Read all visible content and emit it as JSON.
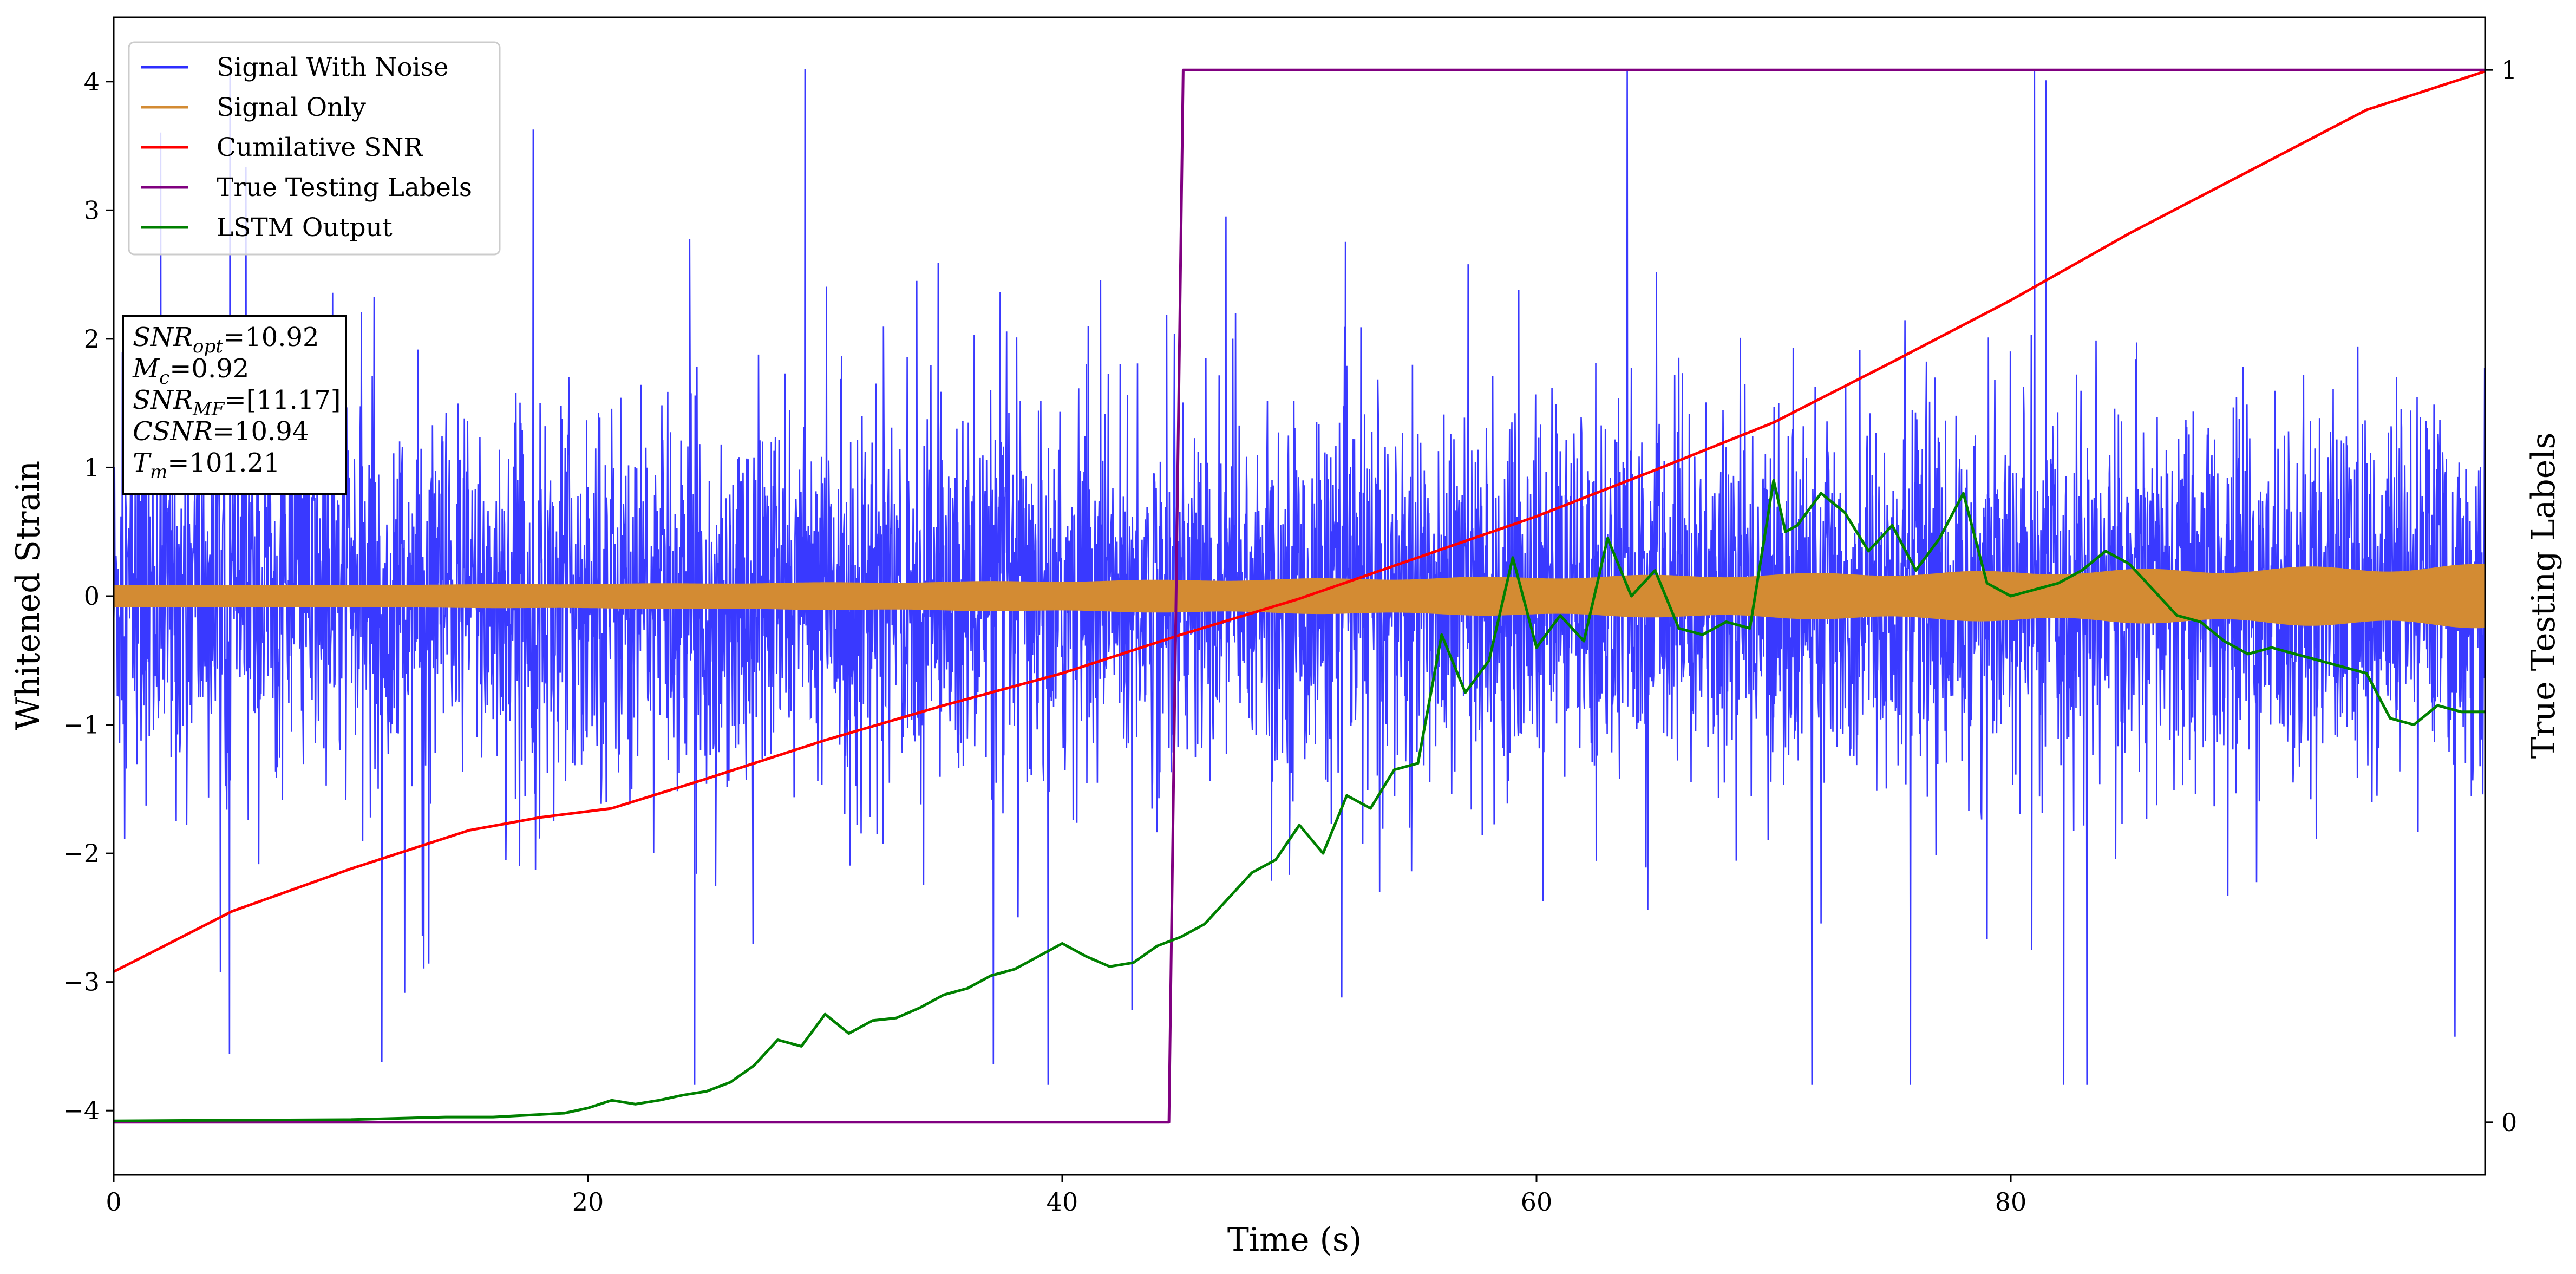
{
  "chart_data": {
    "type": "line",
    "xlabel": "Time (s)",
    "ylabel": "Whitened Strain",
    "ylabel_right": "True Testing Labels",
    "xlim": [
      0,
      100
    ],
    "ylim": [
      -4.5,
      4.5
    ],
    "ylim_right": [
      -0.05,
      1.05
    ],
    "x_ticks": [
      0,
      20,
      40,
      60,
      80
    ],
    "y_ticks": [
      -4,
      -3,
      -2,
      -1,
      0,
      1,
      2,
      3,
      4
    ],
    "y_ticks_right": [
      0,
      1
    ],
    "grid": false,
    "legend_position": "top-left",
    "legend": [
      "Signal With Noise",
      "Signal Only",
      "Cumilative SNR",
      "True Testing Labels",
      "LSTM Output"
    ],
    "series": [
      {
        "name": "Signal With Noise",
        "color": "#2e2eff",
        "kind": "noisy-band",
        "envelope_typical": 1.4,
        "peak_range": [
          -3.8,
          4.1
        ]
      },
      {
        "name": "Signal Only",
        "color": "#d38b33",
        "kind": "chirp-band",
        "amplitude_start": 0.08,
        "amplitude_end": 0.22
      },
      {
        "name": "Cumilative SNR",
        "color": "#ff0000",
        "axis": "left",
        "x": [
          0,
          5,
          10,
          15,
          18,
          21,
          25,
          30,
          35,
          40,
          45,
          50,
          55,
          60,
          65,
          70,
          75,
          80,
          85,
          90,
          95,
          100
        ],
        "values": [
          -2.92,
          -2.45,
          -2.12,
          -1.82,
          -1.72,
          -1.65,
          -1.42,
          -1.12,
          -0.85,
          -0.6,
          -0.3,
          -0.02,
          0.3,
          0.62,
          0.98,
          1.35,
          1.82,
          2.3,
          2.82,
          3.3,
          3.78,
          4.08
        ]
      },
      {
        "name": "True Testing Labels",
        "color": "#800080",
        "axis": "right",
        "x": [
          0,
          44.5,
          45.1,
          100
        ],
        "values": [
          0,
          0,
          1,
          1
        ]
      },
      {
        "name": "LSTM Output",
        "color": "#008000",
        "axis": "left",
        "x": [
          0,
          10,
          12,
          14,
          16,
          17,
          19,
          20,
          21,
          22,
          23,
          24,
          25,
          26,
          27,
          28,
          29,
          30,
          31,
          32,
          33,
          34,
          35,
          36,
          37,
          38,
          39,
          40,
          41,
          42,
          43,
          44,
          45,
          46,
          47,
          48,
          49,
          50,
          51,
          52,
          53,
          54,
          55,
          56,
          57,
          58,
          59,
          60,
          61,
          62,
          63,
          64,
          65,
          66,
          67,
          68,
          69,
          70,
          70.5,
          71,
          72,
          73,
          74,
          75,
          76,
          77,
          78,
          79,
          80,
          81,
          82,
          83,
          84,
          85,
          86,
          87,
          88,
          89,
          90,
          91,
          92,
          93,
          94,
          95,
          96,
          97,
          98,
          99,
          100
        ],
        "values": [
          -4.08,
          -4.07,
          -4.06,
          -4.05,
          -4.05,
          -4.04,
          -4.02,
          -3.98,
          -3.92,
          -3.95,
          -3.92,
          -3.88,
          -3.85,
          -3.78,
          -3.65,
          -3.45,
          -3.5,
          -3.25,
          -3.4,
          -3.3,
          -3.28,
          -3.2,
          -3.1,
          -3.05,
          -2.95,
          -2.9,
          -2.8,
          -2.7,
          -2.8,
          -2.88,
          -2.85,
          -2.72,
          -2.65,
          -2.55,
          -2.35,
          -2.15,
          -2.05,
          -1.78,
          -2.0,
          -1.55,
          -1.65,
          -1.35,
          -1.3,
          -0.3,
          -0.75,
          -0.5,
          0.3,
          -0.4,
          -0.15,
          -0.35,
          0.45,
          0.0,
          0.2,
          -0.25,
          -0.3,
          -0.2,
          -0.25,
          0.9,
          0.5,
          0.55,
          0.8,
          0.65,
          0.35,
          0.55,
          0.2,
          0.45,
          0.8,
          0.1,
          0.0,
          0.05,
          0.1,
          0.2,
          0.35,
          0.25,
          0.05,
          -0.15,
          -0.2,
          -0.35,
          -0.45,
          -0.4,
          -0.45,
          -0.5,
          -0.55,
          -0.6,
          -0.95,
          -1.0,
          -0.85,
          -0.9,
          -0.9
        ]
      }
    ],
    "annotation": {
      "lines": [
        {
          "name": "SNR",
          "sub": "opt",
          "value": "=10.92"
        },
        {
          "name": "M",
          "sub": "c",
          "value": "=0.92"
        },
        {
          "name": "SNR",
          "sub": "MF",
          "value": "=[11.17]"
        },
        {
          "name": "CSNR",
          "sub": "",
          "value": "=10.94"
        },
        {
          "name": "T",
          "sub": "m",
          "value": "=101.21"
        }
      ]
    }
  }
}
